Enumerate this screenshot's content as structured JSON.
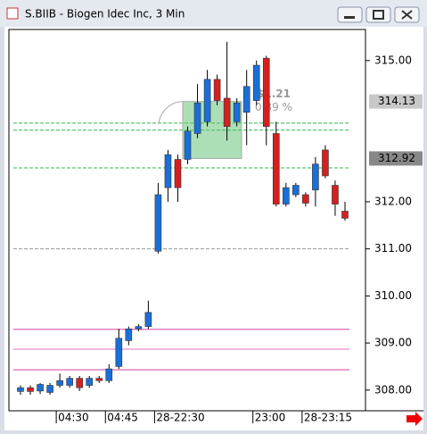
{
  "window_title": "S.BIIB - Biogen Idec Inc, 3 Min",
  "chart_data": {
    "type": "candlestick",
    "categories": [
      null,
      null,
      null,
      null,
      "04:30",
      null,
      null,
      null,
      null,
      "04:45",
      null,
      null,
      null,
      null,
      "28-22:30",
      null,
      null,
      null,
      null,
      null,
      null,
      null,
      null,
      null,
      "23:00",
      null,
      null,
      null,
      null,
      "28-23:15",
      null,
      null,
      null,
      null
    ],
    "open": [
      307.97,
      308.05,
      307.98,
      307.95,
      308.1,
      308.1,
      308.25,
      308.1,
      308.25,
      308.2,
      308.5,
      309.05,
      309.3,
      309.35,
      310.95,
      312.3,
      312.9,
      312.9,
      313.45,
      313.7,
      314.6,
      314.2,
      313.7,
      313.9,
      314.15,
      315.05,
      313.45,
      311.95,
      312.15,
      312.15,
      312.25,
      313.1,
      312.35,
      311.8
    ],
    "high": [
      308.1,
      308.1,
      308.15,
      308.15,
      308.35,
      308.3,
      308.3,
      308.3,
      308.3,
      308.55,
      309.3,
      309.35,
      309.4,
      309.9,
      312.4,
      313.1,
      313.0,
      313.6,
      314.5,
      314.8,
      314.7,
      315.4,
      314.2,
      314.8,
      315.0,
      315.1,
      313.7,
      312.4,
      312.4,
      312.2,
      312.95,
      313.2,
      312.45,
      312.0
    ],
    "low": [
      307.9,
      307.9,
      307.92,
      307.9,
      308.05,
      308.05,
      307.98,
      308.05,
      308.15,
      308.15,
      308.45,
      308.95,
      309.25,
      309.3,
      310.9,
      312.0,
      312.0,
      312.8,
      313.35,
      313.6,
      314.05,
      313.3,
      313.6,
      313.2,
      314.05,
      313.2,
      311.9,
      311.9,
      312.1,
      311.9,
      311.9,
      312.5,
      311.7,
      311.6
    ],
    "close": [
      308.05,
      307.97,
      308.12,
      308.1,
      308.2,
      308.25,
      308.05,
      308.25,
      308.2,
      308.45,
      309.1,
      309.3,
      309.35,
      309.65,
      312.15,
      313.0,
      312.3,
      313.5,
      314.1,
      314.6,
      314.15,
      313.6,
      314.1,
      314.45,
      314.9,
      313.6,
      311.95,
      312.3,
      312.35,
      311.97,
      312.8,
      312.55,
      311.95,
      311.65
    ],
    "up_color": "#1a6fd6",
    "down_color": "#d42020",
    "ylim": [
      307.56,
      315.66
    ],
    "yticks": [
      {
        "value": 315,
        "label": "315.00"
      },
      {
        "value": 312,
        "label": "312.00"
      },
      {
        "value": 311,
        "label": "311.00"
      },
      {
        "value": 310,
        "label": "310.00"
      },
      {
        "value": 309,
        "label": "309.00"
      },
      {
        "value": 308,
        "label": "308.00"
      }
    ],
    "markers": [
      {
        "value": 314.13,
        "label": "314.13",
        "color": "#c8c8c8"
      },
      {
        "value": 312.92,
        "label": "312.92",
        "color": "#888888"
      }
    ],
    "levels": [
      {
        "value": 313.67,
        "color": "#2fb84a",
        "dash": true
      },
      {
        "value": 313.52,
        "color": "#2fb84a",
        "dash": true
      },
      {
        "value": 312.72,
        "color": "#2fb84a",
        "dash": true
      },
      {
        "value": 311.0,
        "color": "#999999",
        "dash": true
      },
      {
        "value": 309.29,
        "color": "#e080c0",
        "dash": false
      },
      {
        "value": 308.87,
        "color": "#f0a0d0",
        "dash": false
      },
      {
        "value": 308.43,
        "color": "#e080c0",
        "dash": false
      }
    ],
    "measure": {
      "high": 314.13,
      "low": 312.92,
      "change": "$1.21",
      "percent": "0.39 %"
    }
  }
}
